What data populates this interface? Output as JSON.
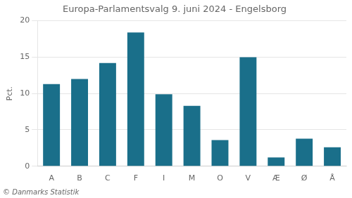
{
  "chart_data": {
    "type": "bar",
    "title": "Europa-Parlamentsvalg 9. juni 2024 - Engelsborg",
    "ylabel": "Pct.",
    "annotations": [
      "© Danmarks Statistik"
    ],
    "categories": [
      "A",
      "B",
      "C",
      "F",
      "I",
      "M",
      "O",
      "V",
      "Æ",
      "Ø",
      "Å"
    ],
    "values": [
      11.3,
      12.0,
      14.2,
      18.4,
      9.9,
      8.3,
      3.6,
      15.0,
      1.2,
      3.8,
      2.6
    ],
    "color": "#1a6f8a",
    "ylim": [
      0,
      20
    ],
    "yticks": [
      0,
      5,
      10,
      15,
      20
    ],
    "grid": true
  }
}
